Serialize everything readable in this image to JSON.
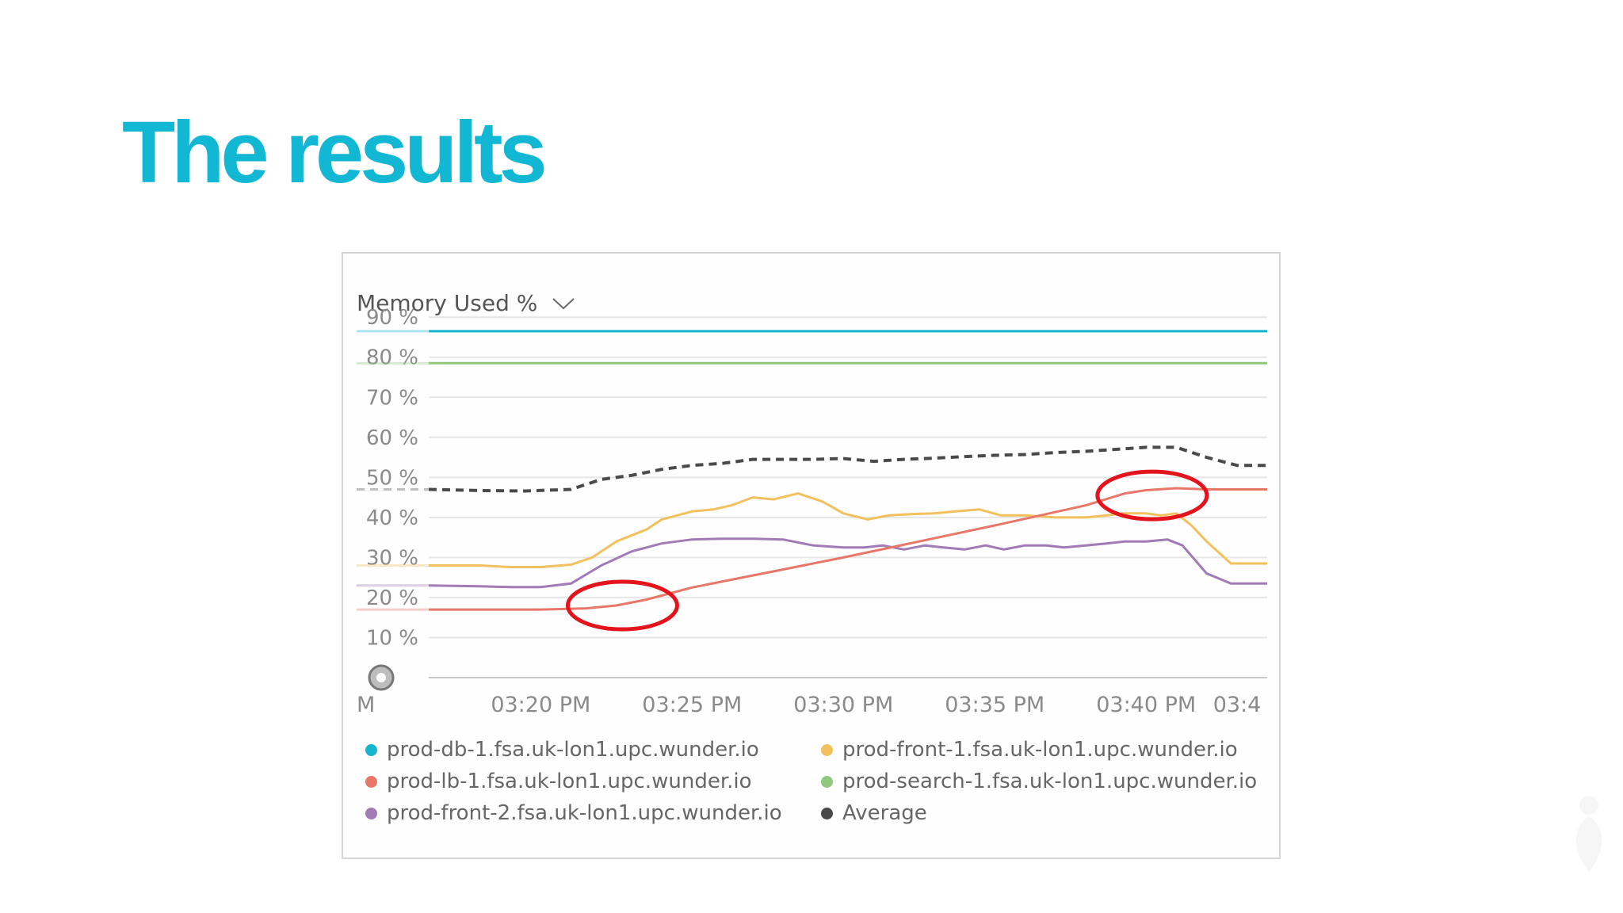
{
  "slide": {
    "title": "The results"
  },
  "panel": {
    "metric_label": "Memory Used %"
  },
  "colors": {
    "db": "#14b5cf",
    "lb": "#e8776a",
    "front2": "#a07bb5",
    "front1": "#f2c15d",
    "search": "#91c77f",
    "average": "#4a4a4a",
    "annotation": "#e3141c",
    "title": "#12b7d4"
  },
  "chart_data": {
    "type": "line",
    "title": "Memory Used %",
    "y_ticks": [
      "90 %",
      "80 %",
      "70 %",
      "60 %",
      "50 %",
      "40 %",
      "30 %",
      "20 %",
      "10 %"
    ],
    "x_ticks": [
      "M",
      "03:20 PM",
      "03:25 PM",
      "03:30 PM",
      "03:35 PM",
      "03:40 PM",
      "03:4"
    ],
    "ylim": [
      0,
      90
    ],
    "xlim": [
      16.3,
      44.0
    ],
    "grid": true,
    "legend_position": "bottom",
    "series": [
      {
        "name": "prod-db-1.fsa.uk-lon1.upc.wunder.io",
        "key": "db",
        "dash": false,
        "x": [
          16.3,
          44.0
        ],
        "y": [
          86.5,
          86.5
        ]
      },
      {
        "name": "prod-search-1.fsa.uk-lon1.upc.wunder.io",
        "key": "search",
        "dash": false,
        "x": [
          16.3,
          44.0
        ],
        "y": [
          78.5,
          78.5
        ]
      },
      {
        "name": "Average",
        "key": "average",
        "dash": true,
        "x": [
          16.3,
          18.0,
          19.5,
          21.0,
          22.0,
          23.0,
          24.0,
          25.0,
          26.0,
          27.0,
          28.0,
          29.0,
          30.0,
          31.0,
          32.0,
          33.0,
          34.0,
          35.0,
          36.0,
          37.0,
          38.0,
          39.0,
          40.0,
          41.0,
          42.0,
          43.0,
          44.0
        ],
        "y": [
          47,
          46.7,
          46.6,
          47,
          49.5,
          50.5,
          52,
          53,
          53.5,
          54.5,
          54.5,
          54.5,
          54.7,
          54,
          54.5,
          54.8,
          55.2,
          55.5,
          55.7,
          56.2,
          56.5,
          57,
          57.5,
          57.5,
          55,
          53,
          53
        ]
      },
      {
        "name": "prod-front-1.fsa.uk-lon1.upc.wunder.io",
        "key": "front1",
        "dash": false,
        "x": [
          16.3,
          18.0,
          19.0,
          20.0,
          21.0,
          21.7,
          22.5,
          23.5,
          24.0,
          25.0,
          25.7,
          26.3,
          27.0,
          27.7,
          28.5,
          29.3,
          30.0,
          30.8,
          31.5,
          32.2,
          33.0,
          33.7,
          34.5,
          35.2,
          36.0,
          37.0,
          38.0,
          38.7,
          39.2,
          40.0,
          40.5,
          41.0,
          41.5,
          42.0,
          42.8,
          44.0
        ],
        "y": [
          28,
          28,
          27.6,
          27.6,
          28.2,
          30,
          34,
          37,
          39.5,
          41.5,
          42,
          43,
          45,
          44.5,
          46,
          44,
          41,
          39.5,
          40.5,
          40.8,
          41,
          41.5,
          42,
          40.5,
          40.5,
          40,
          40,
          40.5,
          41,
          41,
          40.5,
          41,
          38,
          34,
          28.5,
          28.5
        ]
      },
      {
        "name": "prod-front-2.fsa.uk-lon1.upc.wunder.io",
        "key": "front2",
        "dash": false,
        "x": [
          16.3,
          18.0,
          19.0,
          20.0,
          21.0,
          22.0,
          23.0,
          24.0,
          25.0,
          26.0,
          27.0,
          28.0,
          29.0,
          30.0,
          30.7,
          31.3,
          32.0,
          32.7,
          33.3,
          34.0,
          34.7,
          35.3,
          36.0,
          36.7,
          37.3,
          38.0,
          38.7,
          39.3,
          40.0,
          40.7,
          41.2,
          42.0,
          42.8,
          44.0
        ],
        "y": [
          23,
          22.8,
          22.6,
          22.6,
          23.5,
          28,
          31.5,
          33.5,
          34.5,
          34.7,
          34.7,
          34.5,
          33,
          32.5,
          32.5,
          33,
          32,
          33,
          32.5,
          32,
          33,
          32,
          33,
          33,
          32.5,
          33,
          33.5,
          34,
          34,
          34.5,
          33,
          26,
          23.5,
          23.5
        ]
      },
      {
        "name": "prod-lb-1.fsa.uk-lon1.upc.wunder.io",
        "key": "lb",
        "dash": false,
        "x": [
          16.3,
          20.0,
          21.5,
          22.5,
          23.5,
          25.0,
          30.0,
          35.0,
          38.0,
          39.3,
          40.0,
          41.0,
          42.0,
          44.0
        ],
        "y": [
          17,
          17,
          17.3,
          18,
          19.5,
          22.5,
          30,
          38,
          43,
          46,
          46.8,
          47.3,
          47,
          47
        ]
      }
    ],
    "legend": [
      "prod-db-1.fsa.uk-lon1.upc.wunder.io",
      "prod-front-1.fsa.uk-lon1.upc.wunder.io",
      "prod-lb-1.fsa.uk-lon1.upc.wunder.io",
      "prod-search-1.fsa.uk-lon1.upc.wunder.io",
      "prod-front-2.fsa.uk-lon1.upc.wunder.io",
      "Average"
    ],
    "annotations": [
      {
        "shape": "ellipse",
        "cx": 22.7,
        "cy": 18
      },
      {
        "shape": "ellipse",
        "cx": 40.2,
        "cy": 45.5
      }
    ]
  }
}
